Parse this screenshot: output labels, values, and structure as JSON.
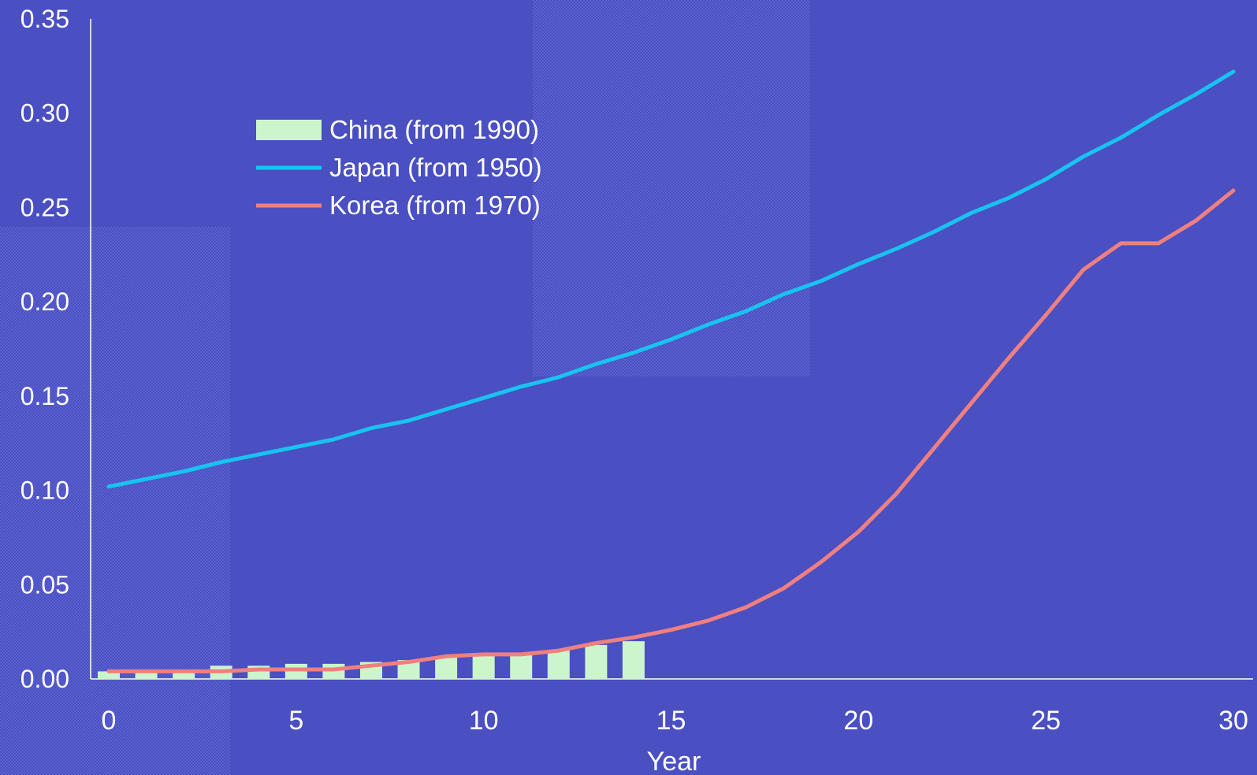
{
  "chart_data": {
    "type": "line",
    "xlabel": "Year",
    "ylabel": "",
    "xlim": [
      0,
      30
    ],
    "ylim": [
      0,
      0.35
    ],
    "x_ticks": [
      "0",
      "5",
      "10",
      "15",
      "20",
      "25",
      "30"
    ],
    "y_ticks": [
      "0.00",
      "0.05",
      "0.10",
      "0.15",
      "0.20",
      "0.25",
      "0.30",
      "0.35"
    ],
    "grid": false,
    "legend_position": "top-left",
    "series": [
      {
        "name": "China (from 1990)",
        "kind": "bar",
        "color": "#ccf5cc",
        "x": [
          0,
          1,
          2,
          3,
          4,
          5,
          6,
          7,
          8,
          9,
          10,
          11,
          12,
          13,
          14
        ],
        "values": [
          0.004,
          0.004,
          0.004,
          0.007,
          0.007,
          0.008,
          0.008,
          0.009,
          0.01,
          0.012,
          0.013,
          0.014,
          0.015,
          0.018,
          0.02
        ]
      },
      {
        "name": "Japan (from 1950)",
        "kind": "line",
        "color": "#19c3f0",
        "x": [
          0,
          1,
          2,
          3,
          4,
          5,
          6,
          7,
          8,
          9,
          10,
          11,
          12,
          13,
          14,
          15,
          16,
          17,
          18,
          19,
          20,
          21,
          22,
          23,
          24,
          25,
          26,
          27,
          28,
          29,
          30
        ],
        "values": [
          0.102,
          0.106,
          0.11,
          0.115,
          0.119,
          0.123,
          0.127,
          0.133,
          0.137,
          0.143,
          0.149,
          0.155,
          0.16,
          0.167,
          0.173,
          0.18,
          0.188,
          0.195,
          0.204,
          0.211,
          0.22,
          0.228,
          0.237,
          0.247,
          0.255,
          0.265,
          0.277,
          0.287,
          0.299,
          0.31,
          0.322
        ]
      },
      {
        "name": "Korea (from 1970)",
        "kind": "line",
        "color": "#f08080",
        "x": [
          0,
          1,
          2,
          3,
          4,
          5,
          6,
          7,
          8,
          9,
          10,
          11,
          12,
          13,
          14,
          15,
          16,
          17,
          18,
          19,
          20,
          21,
          22,
          23,
          24,
          25,
          26,
          27,
          28,
          29,
          30
        ],
        "values": [
          0.004,
          0.004,
          0.004,
          0.004,
          0.005,
          0.005,
          0.005,
          0.007,
          0.009,
          0.012,
          0.013,
          0.013,
          0.015,
          0.019,
          0.022,
          0.026,
          0.031,
          0.038,
          0.048,
          0.062,
          0.078,
          0.098,
          0.122,
          0.146,
          0.17,
          0.193,
          0.217,
          0.231,
          0.231,
          0.243,
          0.259
        ]
      }
    ]
  }
}
